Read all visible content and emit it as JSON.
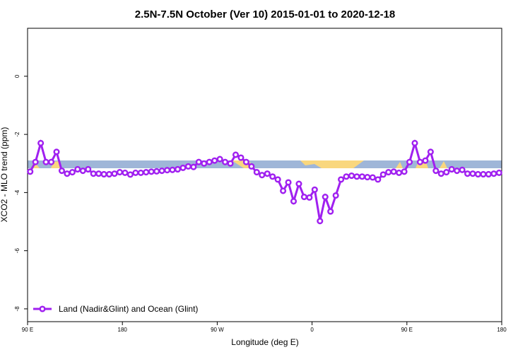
{
  "chart_data": {
    "type": "line",
    "title": "2.5N-7.5N October (Ver 10)   2015-01-01 to 2020-12-18",
    "x_label": "Longitude (deg E)",
    "y_label": "XCO2 - MLO trend (ppm)",
    "x": [
      92.5,
      97.5,
      102.5,
      107.5,
      112.5,
      117.5,
      122.5,
      127.5,
      132.5,
      137.5,
      142.5,
      147.5,
      152.5,
      157.5,
      162.5,
      167.5,
      172.5,
      177.5,
      182.5,
      187.5,
      192.5,
      197.5,
      202.5,
      207.5,
      212.5,
      217.5,
      222.5,
      227.5,
      232.5,
      237.5,
      242.5,
      247.5,
      252.5,
      257.5,
      262.5,
      267.5,
      272.5,
      277.5,
      282.5,
      287.5,
      292.5,
      297.5,
      302.5,
      307.5,
      312.5,
      317.5,
      322.5,
      327.5,
      332.5,
      337.5,
      342.5,
      347.5,
      352.5,
      357.5,
      362.5,
      367.5,
      372.5,
      377.5,
      382.5,
      387.5,
      392.5,
      397.5,
      402.5,
      407.5,
      412.5,
      417.5,
      422.5,
      427.5,
      432.5,
      437.5,
      442.5,
      447.5,
      452.5,
      457.5,
      462.5,
      467.5,
      472.5,
      477.5,
      482.5,
      487.5,
      492.5,
      497.5,
      502.5,
      507.5,
      512.5,
      517.5,
      522.5,
      527.5,
      532.5,
      537.5
    ],
    "series": [
      {
        "name": "Land (Nadir&Glint) and Ocean (Glint)",
        "color": "#a020f0",
        "values": [
          -3.28,
          -2.95,
          -2.3,
          -2.95,
          -2.95,
          -2.6,
          -3.25,
          -3.35,
          -3.3,
          -3.2,
          -3.25,
          -3.2,
          -3.35,
          -3.35,
          -3.37,
          -3.37,
          -3.35,
          -3.3,
          -3.32,
          -3.38,
          -3.32,
          -3.32,
          -3.3,
          -3.28,
          -3.27,
          -3.25,
          -3.23,
          -3.22,
          -3.2,
          -3.15,
          -3.1,
          -3.12,
          -2.95,
          -3.0,
          -2.95,
          -2.9,
          -2.85,
          -2.95,
          -3.0,
          -2.7,
          -2.8,
          -2.95,
          -3.1,
          -3.3,
          -3.4,
          -3.35,
          -3.45,
          -3.55,
          -3.94,
          -3.65,
          -4.3,
          -3.7,
          -4.15,
          -4.17,
          -3.9,
          -4.98,
          -4.15,
          -4.65,
          -4.1,
          -3.55,
          -3.45,
          -3.42,
          -3.45,
          -3.45,
          -3.47,
          -3.48,
          -3.55,
          -3.38,
          -3.3,
          -3.28,
          -3.32,
          -3.28,
          -2.95,
          -2.3,
          -2.95,
          -2.9,
          -2.6,
          -3.25,
          -3.35,
          -3.3,
          -3.2,
          -3.25,
          -3.22,
          -3.35,
          -3.35,
          -3.37,
          -3.37,
          -3.37,
          -3.35,
          -3.32
        ]
      }
    ],
    "xlim": [
      90,
      540
    ],
    "xticks": [
      {
        "value": 90,
        "label": "90 E"
      },
      180,
      {
        "value": 270,
        "label": "90 W"
      },
      {
        "value": 360,
        "label": "0"
      },
      {
        "value": 450,
        "label": "90 E"
      },
      {
        "value": 540,
        "label": "180"
      }
    ],
    "ylim": [
      -8.44,
      1.65
    ],
    "yticks": [
      0,
      -2,
      -4,
      -6,
      -8
    ],
    "legend": "bottom-left"
  }
}
